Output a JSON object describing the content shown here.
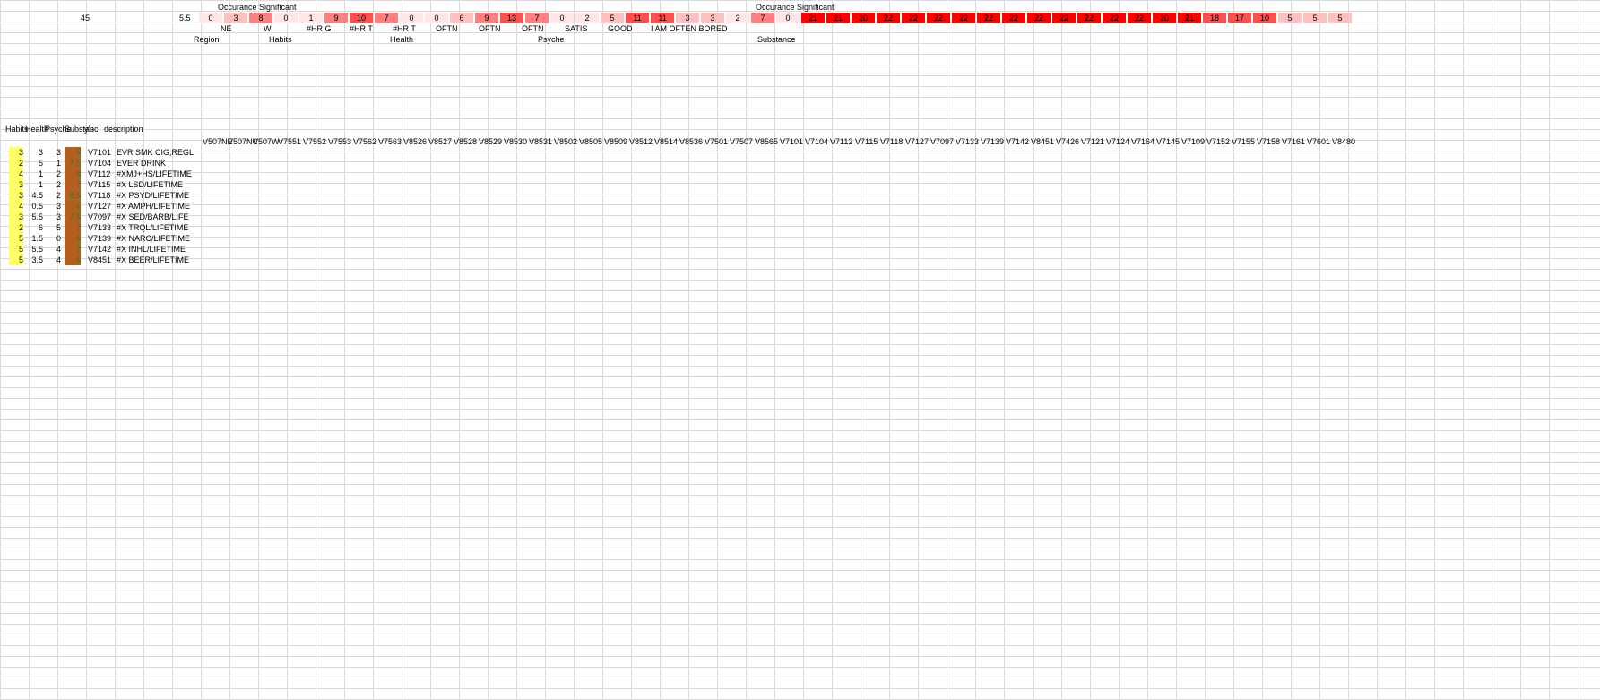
{
  "top": {
    "left_numbers": [
      "45",
      "5.5"
    ],
    "occurrence_left": "Occurance Significant",
    "occurrence_right": "Occurance Significant"
  },
  "top_row": [
    "0",
    "3",
    "8",
    "0",
    "1",
    "9",
    "10",
    "7",
    "0",
    "0",
    "6",
    "9",
    "13",
    "7",
    "0",
    "2",
    "5",
    "11",
    "11",
    "3",
    "3",
    "2",
    "7",
    "0",
    "21",
    "21",
    "20",
    "22",
    "22",
    "22",
    "22",
    "22",
    "22",
    "22",
    "22",
    "22",
    "22",
    "22",
    "20",
    "21",
    "18",
    "17",
    "10",
    "5",
    "5",
    "5"
  ],
  "labels_row2": [
    "NE",
    "W",
    "#HR G",
    "#HR T",
    "#HR T",
    "OFTN",
    "OFTN",
    "OFTN",
    "SATIS",
    "GOOD",
    "I AM OFTEN BORED"
  ],
  "sections": [
    "Region",
    "Habits",
    "Health",
    "Psyche",
    "Substance"
  ],
  "left_headers": [
    "Habits",
    "Health",
    "Psyche",
    "Substanc",
    "y's",
    "description"
  ],
  "variables": [
    "V507NE",
    "V507NC",
    "V507W",
    "V7551",
    "V7552",
    "V7553",
    "V7562",
    "V7563",
    "V8526",
    "V8527",
    "V8528",
    "V8529",
    "V8530",
    "V8531",
    "V8502",
    "V8505",
    "V8509",
    "V8512",
    "V8514",
    "V8536",
    "V7501",
    "V7507",
    "V8565",
    "V7101",
    "V7104",
    "V7112",
    "V7115",
    "V7118",
    "V7127",
    "V7097",
    "V7133",
    "V7139",
    "V7142",
    "V8451",
    "V7426",
    "V7121",
    "V7124",
    "V7164",
    "V7145",
    "V7109",
    "V7152",
    "V7155",
    "V7158",
    "V7161",
    "V7601",
    "V8480"
  ],
  "rows": [
    [
      "3",
      "3",
      "3",
      "9",
      "V7101",
      "EVR SMK CIG,REGL"
    ],
    [
      "2",
      "5",
      "1",
      "7.5",
      "V7104",
      "EVER DRINK"
    ],
    [
      "4",
      "1",
      "2",
      "8",
      "V7112",
      "#XMJ+HS/LIFETIME"
    ],
    [
      "3",
      "1",
      "2",
      "7",
      "V7115",
      "#X LSD/LIFETIME"
    ],
    [
      "3",
      "4.5",
      "2",
      "8.5",
      "V7118",
      "#X PSYD/LIFETIME"
    ],
    [
      "4",
      "0.5",
      "3",
      "6",
      "V7127",
      "#X AMPH/LIFETIME"
    ],
    [
      "3",
      "5.5",
      "3",
      "7.5",
      "V7097",
      "#X SED/BARB/LIFE"
    ],
    [
      "2",
      "6",
      "5",
      "7",
      "V7133",
      "#X TRQL/LIFETIME"
    ],
    [
      "5",
      "1.5",
      "0",
      "6",
      "V7139",
      "#X NARC/LIFETIME"
    ],
    [
      "5",
      "5.5",
      "4",
      "7",
      "V7142",
      "#X INHL/LIFETIME"
    ],
    [
      "5",
      "3.5",
      "4",
      "6",
      "V8451",
      "#X BEER/LIFETIME"
    ]
  ]
}
